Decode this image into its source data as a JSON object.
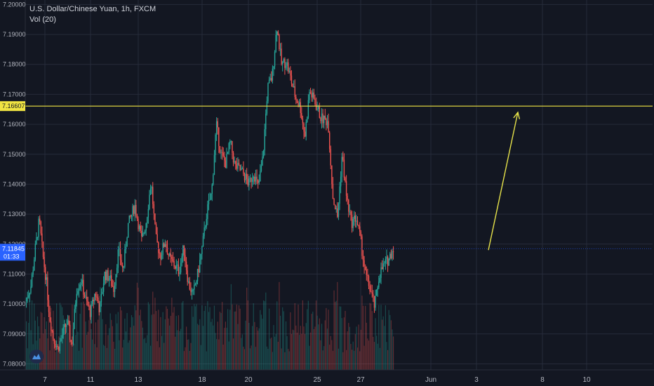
{
  "legend": {
    "title": "U.S. Dollar/Chinese Yuan, 1h, FXCM",
    "indicator": "Vol (20)"
  },
  "colors": {
    "background": "#131722",
    "grid": "#262b3a",
    "up": "#26a69a",
    "down": "#ef5350",
    "hline": "#f0e442",
    "arrow": "#e6e24a",
    "price_tag": "#2962ff"
  },
  "chart_data": {
    "type": "candlestick",
    "title": "U.S. Dollar/Chinese Yuan, 1h, FXCM",
    "y_axis": {
      "ticks": [
        "7.20000",
        "7.19000",
        "7.18000",
        "7.17000",
        "7.16000",
        "7.15000",
        "7.14000",
        "7.13000",
        "7.12000",
        "7.11000",
        "7.10000",
        "7.09000",
        "7.08000"
      ],
      "range": [
        7.078,
        7.2015
      ]
    },
    "x_axis": {
      "ticks": [
        "7",
        "11",
        "13",
        "18",
        "20",
        "25",
        "27",
        "Jun",
        "3",
        "8",
        "10"
      ]
    },
    "horizontal_line": {
      "value": 7.16607,
      "label": "7.16607"
    },
    "last_price": {
      "value": 7.11845,
      "label": "7.11845",
      "countdown": "01:33"
    },
    "projection_arrow": {
      "from": {
        "x": "3",
        "y": 7.118
      },
      "to": {
        "x": "8",
        "y": 7.164
      }
    },
    "price_path": [
      [
        0,
        7.101
      ],
      [
        0.012,
        7.106
      ],
      [
        0.022,
        7.119
      ],
      [
        0.03,
        7.128
      ],
      [
        0.038,
        7.116
      ],
      [
        0.045,
        7.108
      ],
      [
        0.052,
        7.096
      ],
      [
        0.06,
        7.089
      ],
      [
        0.07,
        7.085
      ],
      [
        0.08,
        7.09
      ],
      [
        0.09,
        7.094
      ],
      [
        0.1,
        7.086
      ],
      [
        0.11,
        7.105
      ],
      [
        0.12,
        7.108
      ],
      [
        0.13,
        7.101
      ],
      [
        0.14,
        7.097
      ],
      [
        0.15,
        7.104
      ],
      [
        0.16,
        7.098
      ],
      [
        0.17,
        7.11
      ],
      [
        0.18,
        7.109
      ],
      [
        0.19,
        7.105
      ],
      [
        0.2,
        7.118
      ],
      [
        0.21,
        7.111
      ],
      [
        0.22,
        7.126
      ],
      [
        0.235,
        7.133
      ],
      [
        0.25,
        7.121
      ],
      [
        0.26,
        7.128
      ],
      [
        0.27,
        7.141
      ],
      [
        0.28,
        7.122
      ],
      [
        0.29,
        7.116
      ],
      [
        0.3,
        7.121
      ],
      [
        0.31,
        7.115
      ],
      [
        0.32,
        7.113
      ],
      [
        0.33,
        7.111
      ],
      [
        0.34,
        7.119
      ],
      [
        0.35,
        7.107
      ],
      [
        0.36,
        7.103
      ],
      [
        0.37,
        7.11
      ],
      [
        0.38,
        7.119
      ],
      [
        0.39,
        7.131
      ],
      [
        0.4,
        7.137
      ],
      [
        0.41,
        7.16
      ],
      [
        0.42,
        7.15
      ],
      [
        0.43,
        7.147
      ],
      [
        0.44,
        7.154
      ],
      [
        0.45,
        7.146
      ],
      [
        0.46,
        7.145
      ],
      [
        0.47,
        7.143
      ],
      [
        0.48,
        7.14
      ],
      [
        0.49,
        7.144
      ],
      [
        0.5,
        7.139
      ],
      [
        0.51,
        7.149
      ],
      [
        0.52,
        7.172
      ],
      [
        0.53,
        7.176
      ],
      [
        0.54,
        7.193
      ],
      [
        0.55,
        7.18
      ],
      [
        0.56,
        7.181
      ],
      [
        0.57,
        7.175
      ],
      [
        0.58,
        7.169
      ],
      [
        0.59,
        7.166
      ],
      [
        0.6,
        7.156
      ],
      [
        0.61,
        7.171
      ],
      [
        0.62,
        7.168
      ],
      [
        0.635,
        7.162
      ],
      [
        0.65,
        7.161
      ],
      [
        0.66,
        7.136
      ],
      [
        0.67,
        7.129
      ],
      [
        0.68,
        7.15
      ],
      [
        0.69,
        7.135
      ],
      [
        0.7,
        7.127
      ],
      [
        0.71,
        7.129
      ],
      [
        0.72,
        7.121
      ],
      [
        0.73,
        7.11
      ],
      [
        0.74,
        7.105
      ],
      [
        0.75,
        7.099
      ],
      [
        0.76,
        7.11
      ],
      [
        0.77,
        7.113
      ],
      [
        0.78,
        7.115
      ],
      [
        0.79,
        7.119
      ]
    ],
    "volume": "bars along the bottom of the plot; values not labeled"
  }
}
